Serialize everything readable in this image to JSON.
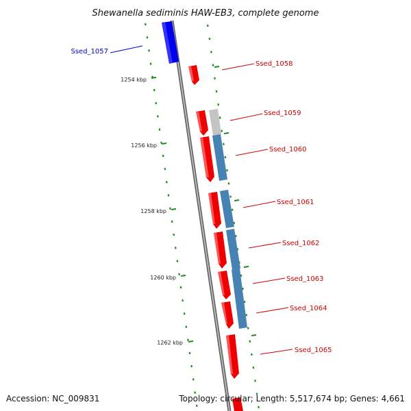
{
  "title": "Shewanella sediminis HAW-EB3, complete genome",
  "accession": "Accession: NC_009831",
  "topology": "Topology: circular; Length: 5,517,674 bp; Genes: 4,661",
  "colors": {
    "backbone": "#8a8a8a",
    "ruler": "#1f8a1f",
    "forward_gene": "#ff0000",
    "reverse_gene": "#0000ff",
    "blue_feature": "#3f7fbf",
    "gray_feature": "#c0c0c0",
    "label_red": "#cc0000",
    "label_blue": "#0000cc"
  },
  "ruler_ticks": [
    "1254 kbp",
    "1256 kbp",
    "1258 kbp",
    "1260 kbp",
    "1262 kbp"
  ],
  "genes": [
    {
      "label": "Ssed_1057",
      "color": "label_blue"
    },
    {
      "label": "Ssed_1058",
      "color": "label_red"
    },
    {
      "label": "Ssed_1059",
      "color": "label_red"
    },
    {
      "label": "Ssed_1060",
      "color": "label_red"
    },
    {
      "label": "Ssed_1061",
      "color": "label_red"
    },
    {
      "label": "Ssed_1062",
      "color": "label_red"
    },
    {
      "label": "Ssed_1063",
      "color": "label_red"
    },
    {
      "label": "Ssed_1064",
      "color": "label_red"
    },
    {
      "label": "Ssed_1065",
      "color": "label_red"
    }
  ]
}
